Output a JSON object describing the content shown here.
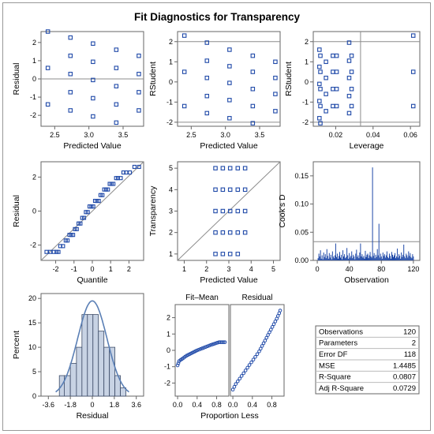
{
  "title": "Fit Diagnostics for Transparency",
  "colors": {
    "marker": "#1f49a8",
    "bar_fill": "#c8d3e4",
    "bar_stroke": "#3b4a66",
    "curve": "#5a7fb5",
    "axis": "#666666",
    "ref": "#8c8c8c"
  },
  "chart_data": [
    {
      "type": "scatter",
      "xlabel": "Predicted Value",
      "ylabel": "Residual",
      "xlim": [
        2.3,
        3.8
      ],
      "ylim": [
        -2.6,
        2.6
      ],
      "xticks": [
        "2.5",
        "3.0",
        "3.5"
      ],
      "yticks": [
        "-2",
        "-1",
        "0",
        "1",
        "2"
      ],
      "reference_lines": {
        "h": [
          0
        ]
      },
      "points": [
        [
          2.4,
          2.6
        ],
        [
          2.4,
          0.6
        ],
        [
          2.4,
          -1.4
        ],
        [
          2.73,
          2.27
        ],
        [
          2.73,
          1.27
        ],
        [
          2.73,
          0.27
        ],
        [
          2.73,
          -0.73
        ],
        [
          2.73,
          -1.73
        ],
        [
          3.06,
          1.94
        ],
        [
          3.06,
          0.94
        ],
        [
          3.06,
          -0.06
        ],
        [
          3.06,
          -1.06
        ],
        [
          3.06,
          -2.06
        ],
        [
          3.4,
          1.6
        ],
        [
          3.4,
          0.6
        ],
        [
          3.4,
          -0.4
        ],
        [
          3.4,
          -1.4
        ],
        [
          3.4,
          -2.4
        ],
        [
          3.73,
          1.27
        ],
        [
          3.73,
          0.27
        ],
        [
          3.73,
          -0.73
        ],
        [
          3.73,
          -1.73
        ]
      ]
    },
    {
      "type": "scatter",
      "xlabel": "Predicted Value",
      "ylabel": "RStudent",
      "xlim": [
        2.3,
        3.8
      ],
      "ylim": [
        -2.2,
        2.5
      ],
      "xticks": [
        "2.5",
        "3.0",
        "3.5"
      ],
      "yticks": [
        "-2",
        "-1",
        "0",
        "1",
        "2"
      ],
      "reference_lines": {
        "h": [
          -2,
          2
        ]
      },
      "points": [
        [
          2.4,
          2.3
        ],
        [
          2.4,
          0.5
        ],
        [
          2.4,
          -1.2
        ],
        [
          2.73,
          1.95
        ],
        [
          2.73,
          1.05
        ],
        [
          2.73,
          0.2
        ],
        [
          2.73,
          -0.7
        ],
        [
          2.73,
          -1.55
        ],
        [
          3.06,
          1.6
        ],
        [
          3.06,
          0.78
        ],
        [
          3.06,
          -0.05
        ],
        [
          3.06,
          -0.9
        ],
        [
          3.06,
          -1.8
        ],
        [
          3.4,
          1.3
        ],
        [
          3.4,
          0.5
        ],
        [
          3.4,
          -0.35
        ],
        [
          3.4,
          -1.2
        ],
        [
          3.4,
          -2.05
        ],
        [
          3.73,
          1.0
        ],
        [
          3.73,
          0.2
        ],
        [
          3.73,
          -0.6
        ],
        [
          3.73,
          -1.45
        ]
      ]
    },
    {
      "type": "scatter",
      "xlabel": "Leverage",
      "ylabel": "RStudent",
      "xlim": [
        0.008,
        0.065
      ],
      "ylim": [
        -2.2,
        2.5
      ],
      "xticks": [
        "0.02",
        "0.04",
        "0.06"
      ],
      "yticks": [
        "-2",
        "-1",
        "0",
        "1",
        "2"
      ],
      "reference_lines": {
        "h": [
          -2,
          2
        ],
        "v": [
          0.0333
        ]
      },
      "points": [
        [
          0.0113,
          1.6
        ],
        [
          0.0113,
          0.75
        ],
        [
          0.0113,
          -0.1
        ],
        [
          0.0113,
          -0.95
        ],
        [
          0.0113,
          -1.8
        ],
        [
          0.0118,
          1.3
        ],
        [
          0.0118,
          0.5
        ],
        [
          0.0118,
          -0.35
        ],
        [
          0.0118,
          -1.2
        ],
        [
          0.0118,
          -2.05
        ],
        [
          0.0148,
          1.0
        ],
        [
          0.0148,
          0.2
        ],
        [
          0.0148,
          -0.6
        ],
        [
          0.0148,
          -1.45
        ],
        [
          0.0185,
          1.3
        ],
        [
          0.0185,
          0.5
        ],
        [
          0.0185,
          -0.35
        ],
        [
          0.0185,
          -1.2
        ],
        [
          0.0205,
          1.3
        ],
        [
          0.0205,
          0.5
        ],
        [
          0.0205,
          -0.35
        ],
        [
          0.0205,
          -1.2
        ],
        [
          0.0272,
          1.95
        ],
        [
          0.0272,
          1.05
        ],
        [
          0.0272,
          0.2
        ],
        [
          0.0272,
          -0.7
        ],
        [
          0.0272,
          -1.55
        ],
        [
          0.0285,
          1.3
        ],
        [
          0.0285,
          0.5
        ],
        [
          0.0285,
          -0.35
        ],
        [
          0.0285,
          -1.2
        ],
        [
          0.0615,
          2.3
        ],
        [
          0.0615,
          0.5
        ],
        [
          0.0615,
          -1.2
        ]
      ]
    },
    {
      "type": "scatter",
      "xlabel": "Quantile",
      "ylabel": "Residual",
      "xlim": [
        -2.8,
        2.8
      ],
      "ylim": [
        -2.9,
        2.9
      ],
      "xticks": [
        "-2",
        "-1",
        "0",
        "1",
        "2"
      ],
      "yticks": [
        "-2",
        "0",
        "2"
      ],
      "reference_lines": {
        "diag": true
      },
      "points": [
        [
          -2.5,
          -2.4
        ],
        [
          -2.3,
          -2.4
        ],
        [
          -2.1,
          -2.4
        ],
        [
          -1.95,
          -2.4
        ],
        [
          -1.85,
          -2.4
        ],
        [
          -1.75,
          -2.06
        ],
        [
          -1.6,
          -2.06
        ],
        [
          -1.45,
          -1.73
        ],
        [
          -1.35,
          -1.73
        ],
        [
          -1.25,
          -1.4
        ],
        [
          -1.15,
          -1.4
        ],
        [
          -1.05,
          -1.4
        ],
        [
          -0.95,
          -1.06
        ],
        [
          -0.85,
          -1.06
        ],
        [
          -0.75,
          -0.73
        ],
        [
          -0.65,
          -0.73
        ],
        [
          -0.55,
          -0.4
        ],
        [
          -0.45,
          -0.4
        ],
        [
          -0.35,
          -0.06
        ],
        [
          -0.25,
          -0.06
        ],
        [
          -0.15,
          0.27
        ],
        [
          -0.05,
          0.27
        ],
        [
          0.05,
          0.27
        ],
        [
          0.15,
          0.6
        ],
        [
          0.25,
          0.6
        ],
        [
          0.35,
          0.6
        ],
        [
          0.45,
          0.94
        ],
        [
          0.55,
          0.94
        ],
        [
          0.65,
          1.27
        ],
        [
          0.75,
          1.27
        ],
        [
          0.85,
          1.27
        ],
        [
          0.95,
          1.6
        ],
        [
          1.05,
          1.6
        ],
        [
          1.15,
          1.6
        ],
        [
          1.3,
          1.94
        ],
        [
          1.4,
          1.94
        ],
        [
          1.55,
          1.94
        ],
        [
          1.7,
          2.27
        ],
        [
          1.85,
          2.27
        ],
        [
          2.05,
          2.27
        ],
        [
          2.3,
          2.6
        ],
        [
          2.55,
          2.6
        ]
      ]
    },
    {
      "type": "scatter",
      "xlabel": "Predicted Value",
      "ylabel": "Transparency",
      "xlim": [
        0.7,
        5.3
      ],
      "ylim": [
        0.7,
        5.3
      ],
      "xticks": [
        "1",
        "2",
        "3",
        "4",
        "5"
      ],
      "yticks": [
        "1",
        "2",
        "3",
        "4",
        "5"
      ],
      "reference_lines": {
        "diag": true
      },
      "points": [
        [
          2.4,
          1
        ],
        [
          2.4,
          2
        ],
        [
          2.4,
          3
        ],
        [
          2.4,
          4
        ],
        [
          2.4,
          5
        ],
        [
          2.73,
          1
        ],
        [
          2.73,
          2
        ],
        [
          2.73,
          3
        ],
        [
          2.73,
          4
        ],
        [
          2.73,
          5
        ],
        [
          3.06,
          1
        ],
        [
          3.06,
          2
        ],
        [
          3.06,
          3
        ],
        [
          3.06,
          4
        ],
        [
          3.06,
          5
        ],
        [
          3.4,
          1
        ],
        [
          3.4,
          2
        ],
        [
          3.4,
          3
        ],
        [
          3.4,
          4
        ],
        [
          3.4,
          5
        ],
        [
          3.73,
          2
        ],
        [
          3.73,
          3
        ],
        [
          3.73,
          4
        ],
        [
          3.73,
          5
        ]
      ]
    },
    {
      "type": "bar",
      "subtype": "needle",
      "xlabel": "Observation",
      "ylabel": "Cook's D",
      "xlim": [
        -5,
        128
      ],
      "ylim": [
        0,
        0.175
      ],
      "xticks": [
        "0",
        "40",
        "80",
        "120"
      ],
      "yticks": [
        "0.00",
        "0.05",
        "0.10",
        "0.15"
      ],
      "reference_lines": {
        "h": [
          0.0333
        ]
      },
      "values": [
        0.004,
        0.012,
        0.007,
        0.018,
        0.003,
        0.009,
        0.002,
        0.014,
        0.006,
        0.011,
        0.004,
        0.02,
        0.008,
        0.003,
        0.013,
        0.005,
        0.01,
        0.002,
        0.016,
        0.007,
        0.004,
        0.009,
        0.03,
        0.006,
        0.012,
        0.003,
        0.008,
        0.015,
        0.005,
        0.01,
        0.002,
        0.018,
        0.007,
        0.011,
        0.004,
        0.006,
        0.022,
        0.009,
        0.003,
        0.013,
        0.005,
        0.008,
        0.016,
        0.004,
        0.01,
        0.007,
        0.002,
        0.012,
        0.019,
        0.006,
        0.009,
        0.004,
        0.014,
        0.03,
        0.007,
        0.011,
        0.005,
        0.008,
        0.003,
        0.017,
        0.006,
        0.01,
        0.012,
        0.004,
        0.009,
        0.015,
        0.007,
        0.005,
        0.165,
        0.008,
        0.013,
        0.004,
        0.01,
        0.006,
        0.02,
        0.009,
        0.065,
        0.005,
        0.012,
        0.007,
        0.003,
        0.014,
        0.008,
        0.011,
        0.005,
        0.009,
        0.016,
        0.006,
        0.004,
        0.012,
        0.008,
        0.003,
        0.015,
        0.01,
        0.006,
        0.009,
        0.013,
        0.004,
        0.007,
        0.021,
        0.005,
        0.011,
        0.008,
        0.003,
        0.014,
        0.006,
        0.01,
        0.028,
        0.007,
        0.004,
        0.012,
        0.009,
        0.005,
        0.016,
        0.008,
        0.013,
        0.006,
        0.004,
        0.011,
        0.007
      ]
    },
    {
      "type": "bar",
      "subtype": "histogram",
      "xlabel": "Residual",
      "ylabel": "Percent",
      "xlim": [
        -4.2,
        4.2
      ],
      "ylim": [
        0,
        21
      ],
      "xticks": [
        "-3.6",
        "-1.8",
        "0",
        "1.8",
        "3.6"
      ],
      "yticks": [
        "0",
        "5",
        "10",
        "15",
        "20"
      ],
      "bins": [
        [
          -2.7,
          -2.3
        ],
        [
          -2.3,
          -1.8
        ],
        [
          -1.8,
          -1.3
        ],
        [
          -1.3,
          -0.85
        ],
        [
          -0.85,
          -0.4
        ],
        [
          -0.4,
          0.05
        ],
        [
          0.05,
          0.5
        ],
        [
          0.5,
          0.95
        ],
        [
          0.95,
          1.4
        ],
        [
          1.4,
          1.85
        ],
        [
          1.85,
          2.3
        ],
        [
          2.3,
          2.75
        ]
      ],
      "values": [
        4.2,
        4.2,
        6.7,
        10.0,
        16.7,
        16.7,
        16.7,
        13.3,
        10.0,
        10.0,
        4.2,
        1.7
      ],
      "curve": "normal"
    },
    {
      "type": "scatter",
      "subtype": "residual-fit spread",
      "xlabel": "Proportion Less",
      "ylabel": "",
      "panels": [
        "Fit–Mean",
        "Residual"
      ],
      "xticks": [
        "0.0",
        "0.4",
        "0.8"
      ],
      "yticks": [
        "-2",
        "-1",
        "0",
        "1",
        "2"
      ],
      "xlim": [
        -0.05,
        1.05
      ],
      "ylim": [
        -2.8,
        2.8
      ],
      "fit_minus_mean": [
        [
          0.0,
          -0.92
        ],
        [
          0.03,
          -0.66
        ],
        [
          0.18,
          -0.33
        ],
        [
          0.4,
          0.0
        ],
        [
          0.68,
          0.33
        ],
        [
          0.85,
          0.5
        ],
        [
          1.0,
          0.5
        ]
      ],
      "residual": [
        [
          0.0,
          -2.4
        ],
        [
          0.06,
          -2.06
        ],
        [
          0.14,
          -1.73
        ],
        [
          0.22,
          -1.4
        ],
        [
          0.3,
          -1.06
        ],
        [
          0.38,
          -0.73
        ],
        [
          0.46,
          -0.4
        ],
        [
          0.54,
          -0.06
        ],
        [
          0.6,
          0.27
        ],
        [
          0.66,
          0.6
        ],
        [
          0.72,
          0.94
        ],
        [
          0.78,
          1.27
        ],
        [
          0.84,
          1.6
        ],
        [
          0.9,
          1.94
        ],
        [
          0.95,
          2.27
        ],
        [
          0.99,
          2.6
        ]
      ]
    },
    {
      "type": "table",
      "rows": [
        [
          "Observations",
          "120"
        ],
        [
          "Parameters",
          "2"
        ],
        [
          "Error DF",
          "118"
        ],
        [
          "MSE",
          "1.4485"
        ],
        [
          "R-Square",
          "0.0807"
        ],
        [
          "Adj R-Square",
          "0.0729"
        ]
      ]
    }
  ]
}
